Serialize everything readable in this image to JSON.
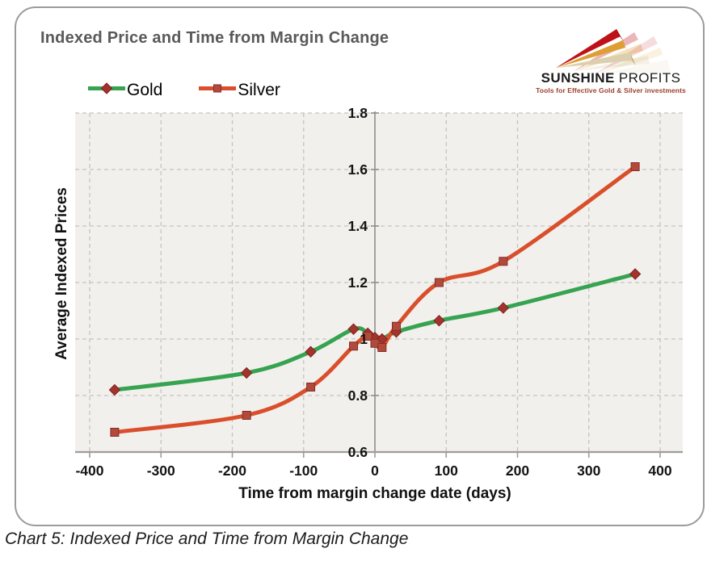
{
  "page": {
    "caption": "Chart 5: Indexed Price and Time from Margin Change"
  },
  "header": {
    "title": "Indexed Price and Time from Margin Change"
  },
  "logo": {
    "brand_word1": "SUNSHINE",
    "brand_word2": "PROFITS",
    "tagline": "Tools for Effective Gold & Silver investments",
    "colors": {
      "red": "#bf1218",
      "gold": "#dd9f33",
      "tan": "#dccfad"
    }
  },
  "chart_data": {
    "type": "line",
    "title": "Indexed Price and Time from Margin Change",
    "xlabel": "Time from margin change date (days)",
    "ylabel": "Average Indexed Prices",
    "x_ticks": [
      -400,
      -300,
      -200,
      -100,
      0,
      100,
      200,
      300,
      400
    ],
    "y_ticks": [
      0.6,
      0.8,
      1,
      1.2,
      1.4,
      1.6,
      1.8
    ],
    "xlim": [
      -400,
      400
    ],
    "ylim": [
      0.6,
      1.8
    ],
    "grid": "dashed",
    "legend_position": "top-left",
    "plot_background": "#f2f0ed",
    "series": [
      {
        "name": "Gold",
        "color": "#36a351",
        "marker": "diamond",
        "marker_color": "#a5332d",
        "marker_stroke": "#7c241f",
        "x": [
          -365,
          -180,
          -90,
          -30,
          -10,
          0,
          10,
          30,
          90,
          180,
          365
        ],
        "y": [
          0.82,
          0.88,
          0.955,
          1.035,
          1.02,
          1.005,
          1.0,
          1.025,
          1.065,
          1.11,
          1.23
        ]
      },
      {
        "name": "Silver",
        "color": "#d94f2b",
        "marker": "square",
        "marker_color": "#b14a3d",
        "marker_stroke": "#842e24",
        "x": [
          -365,
          -180,
          -90,
          -30,
          -10,
          0,
          10,
          30,
          90,
          180,
          365
        ],
        "y": [
          0.67,
          0.73,
          0.83,
          0.975,
          1.01,
          0.985,
          0.97,
          1.045,
          1.2,
          1.275,
          1.61
        ]
      }
    ]
  }
}
